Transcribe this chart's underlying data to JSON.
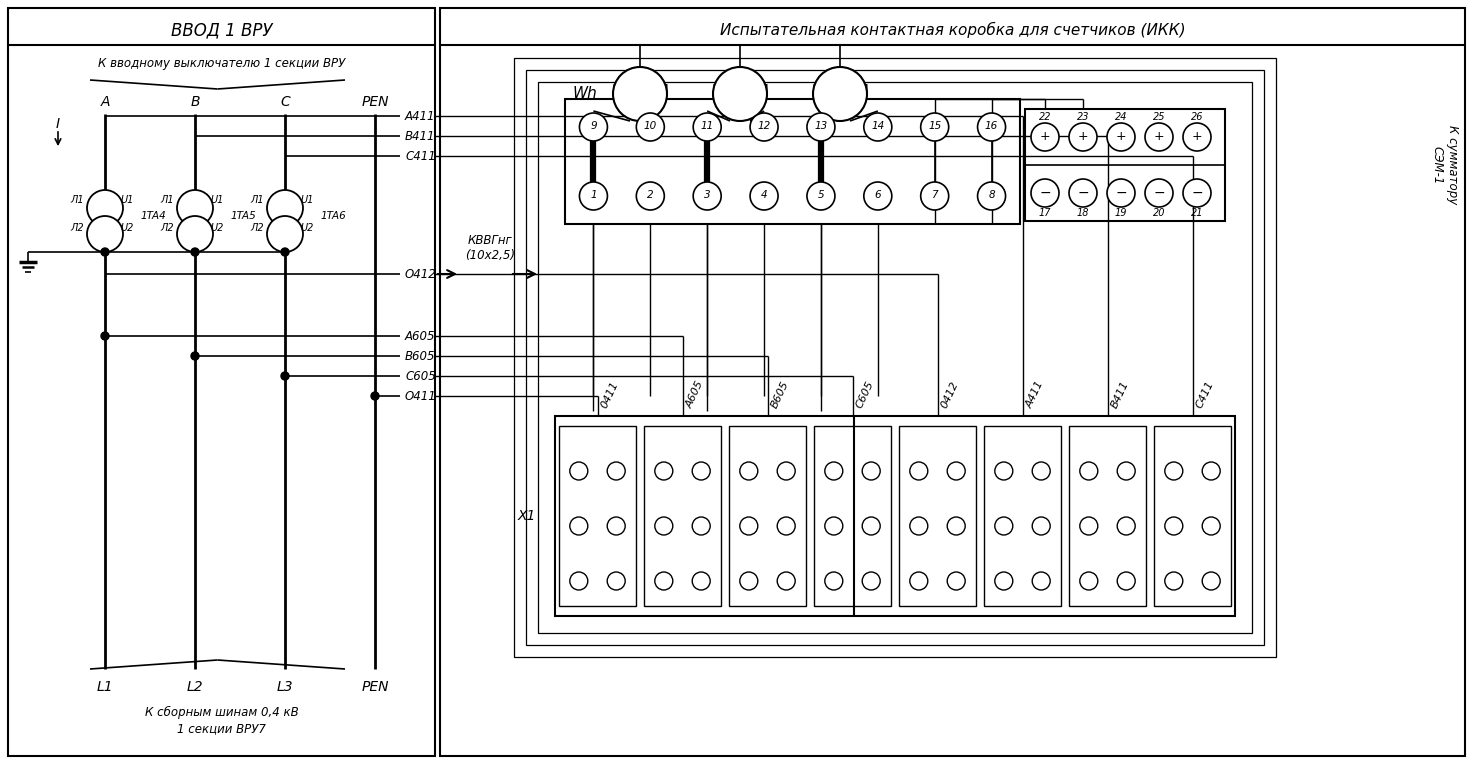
{
  "bg": "#ffffff",
  "title_l": "ВВОД 1 ВРУ",
  "title_r": "Испытательная контактная коробка для счетчиков (ИКК)",
  "top_label": "К вводному выключателю 1 секции ВРУ",
  "bot_label1": "К сборным шинам 0,4 кВ",
  "bot_label2": "1 секции ВРУ7",
  "ph_top": [
    "A",
    "B",
    "C",
    "PEN"
  ],
  "ph_bot": [
    "L1",
    "L2",
    "L3",
    "PEN"
  ],
  "wire_labels_r": [
    "A411",
    "B411",
    "C411",
    "O412",
    "A605",
    "B605",
    "C605",
    "O411"
  ],
  "ct_names": [
    "1TA4",
    "1TA5",
    "1TA6"
  ],
  "cable_txt": "КВВГнг\n(10х2,5)",
  "wh_txt": "Wh",
  "x1_txt": "X1",
  "sum_label": "К сумматору\nСЭМ-1",
  "ikk_top": [
    "9",
    "10",
    "11",
    "12",
    "13",
    "14",
    "15",
    "16"
  ],
  "ikk_bot": [
    "1",
    "2",
    "3",
    "4",
    "5",
    "6",
    "7",
    "8"
  ],
  "sum_top_nums": [
    "22",
    "23",
    "24",
    "25",
    "26"
  ],
  "sum_bot_nums": [
    "17",
    "18",
    "19",
    "20",
    "21"
  ],
  "x1_col_labels": [
    "0411",
    "А605",
    "В605",
    "С605",
    "0412",
    "А411",
    "В411",
    "С411"
  ]
}
